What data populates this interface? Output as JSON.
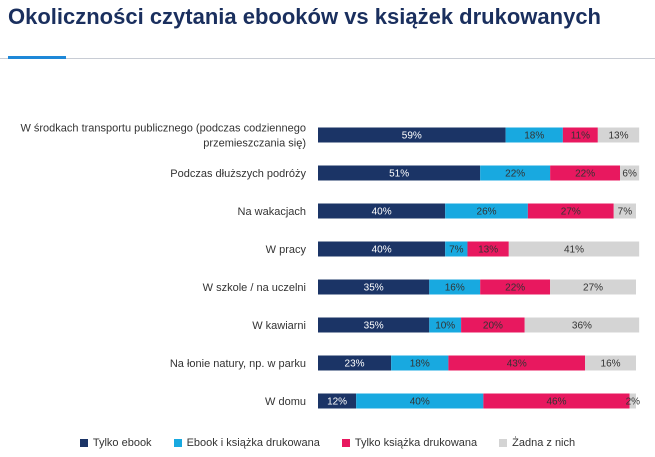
{
  "page": {
    "title": "Okoliczności czytania ebooków vs książek drukowanych"
  },
  "chart_data": {
    "type": "bar",
    "orientation": "horizontal",
    "stacked": true,
    "title": "Okoliczności czytania ebooków vs książek drukowanych",
    "categories": [
      [
        "W środkach transportu publicznego (podczas codziennego",
        "przemieszczania się)"
      ],
      [
        "Podczas dłuższych podróży"
      ],
      [
        "Na wakacjach"
      ],
      [
        "W pracy"
      ],
      [
        "W szkole / na uczelni"
      ],
      [
        "W kawiarni"
      ],
      [
        "Na łonie natury, np. w parku"
      ],
      [
        "W domu"
      ]
    ],
    "series": [
      {
        "name": "Tylko ebook",
        "color": "#1b3466",
        "label_color": "#ffffff",
        "values": [
          59,
          51,
          40,
          40,
          35,
          35,
          23,
          12
        ]
      },
      {
        "name": "Ebook i książka drukowana",
        "color": "#18a9e0",
        "label_color": "#333333",
        "values": [
          18,
          22,
          26,
          7,
          16,
          10,
          18,
          40
        ]
      },
      {
        "name": "Tylko książka drukowana",
        "color": "#e8185f",
        "label_color": "#333333",
        "values": [
          11,
          22,
          27,
          13,
          22,
          20,
          43,
          46
        ]
      },
      {
        "name": "Żadna z nich",
        "color": "#d4d4d4",
        "label_color": "#333333",
        "values": [
          13,
          6,
          7,
          41,
          27,
          36,
          16,
          2
        ]
      }
    ],
    "unit": "%",
    "xlim": [
      0,
      100
    ],
    "legend": "bottom"
  }
}
